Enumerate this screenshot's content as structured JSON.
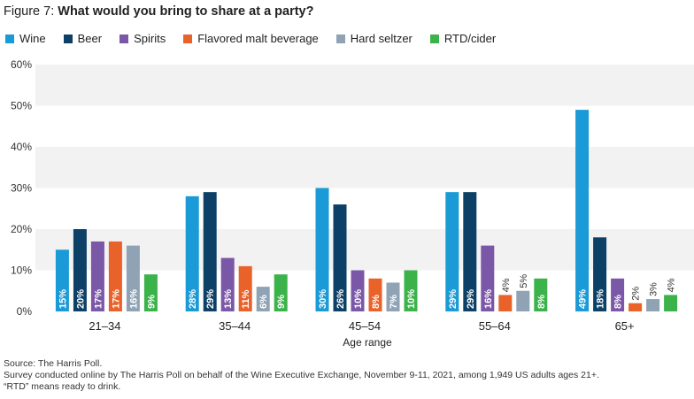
{
  "title": {
    "lead": "Figure 7:",
    "question": "What would you bring to share at a party?"
  },
  "chart_data": {
    "type": "bar",
    "categories": [
      "21–34",
      "35–44",
      "45–54",
      "55–64",
      "65+"
    ],
    "series": [
      {
        "name": "Wine",
        "color": "#1a9ad6",
        "values": [
          15,
          28,
          30,
          29,
          49
        ],
        "labels": [
          "15%",
          "28%",
          "30%",
          "29%",
          "49%"
        ]
      },
      {
        "name": "Beer",
        "color": "#0d4066",
        "values": [
          20,
          29,
          26,
          29,
          18
        ],
        "labels": [
          "20%",
          "29%",
          "26%",
          "29%",
          "18%"
        ]
      },
      {
        "name": "Spirits",
        "color": "#7b57a8",
        "values": [
          17,
          13,
          10,
          16,
          8
        ],
        "labels": [
          "17%",
          "13%",
          "10%",
          "16%",
          "8%"
        ]
      },
      {
        "name": "Flavored malt beverage",
        "color": "#e8622a",
        "values": [
          17,
          11,
          8,
          4,
          2
        ],
        "labels": [
          "17%",
          "11%",
          "8%",
          "4%",
          "2%"
        ]
      },
      {
        "name": "Hard seltzer",
        "color": "#8fa3b5",
        "values": [
          16,
          6,
          7,
          5,
          3
        ],
        "labels": [
          "16%",
          "6%",
          "7%",
          "5%",
          "3%"
        ]
      },
      {
        "name": "RTD/cider",
        "color": "#3bb34a",
        "values": [
          9,
          9,
          10,
          8,
          4
        ],
        "labels": [
          "9%",
          "9%",
          "10%",
          "8%",
          "4%"
        ]
      }
    ],
    "xlabel": "Age range",
    "ylabel": "",
    "ylim": [
      0,
      60
    ],
    "yticks": [
      "0%",
      "10%",
      "20%",
      "30%",
      "40%",
      "50%",
      "60%"
    ],
    "legend_position": "top",
    "grid": "alternating horizontal bands"
  },
  "source": {
    "line1": "Source: The Harris Poll.",
    "line2": "Survey conducted online by The Harris Poll on behalf of the Wine Executive Exchange, November 9-11, 2021, among 1,949 US adults ages 21+.",
    "line3": "“RTD” means ready to drink."
  }
}
